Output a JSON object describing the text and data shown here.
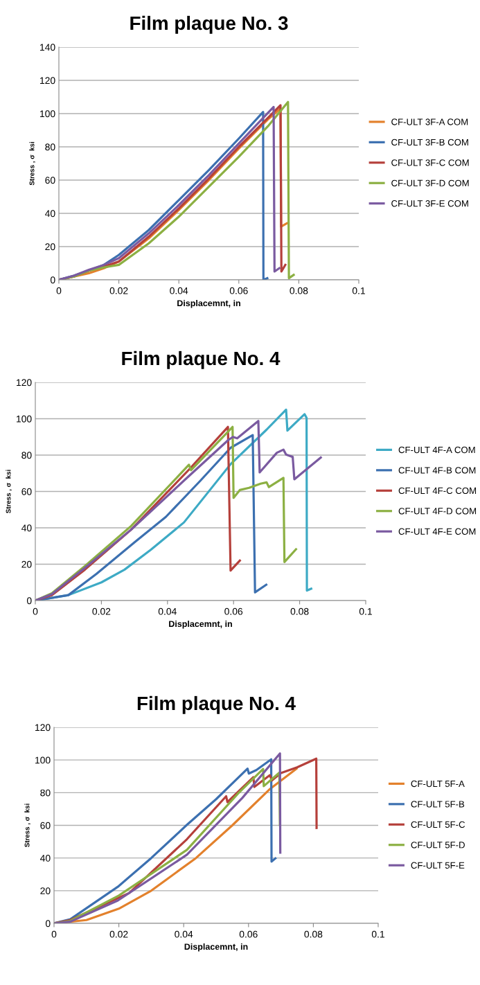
{
  "chart_data": [
    {
      "type": "line",
      "title": "Film plaque No. 3",
      "xlabel": "Displacemnt, in",
      "ylabel": "Stress , σ  ksi",
      "xlim": [
        0,
        0.1
      ],
      "xticks": [
        0,
        0.02,
        0.04,
        0.06,
        0.08,
        0.1
      ],
      "ylim": [
        0,
        140
      ],
      "yticks": [
        0,
        20,
        40,
        60,
        80,
        100,
        120,
        140
      ],
      "grid": "y",
      "legend": "right",
      "marker": "none",
      "line_style": "solid",
      "series": [
        {
          "name": "CF-ULT 3F-A COM",
          "color": "#e3812c",
          "x": [
            0,
            0.005,
            0.01,
            0.015,
            0.02,
            0.03,
            0.04,
            0.05,
            0.06,
            0.07,
            0.0739,
            0.0741,
            0.076
          ],
          "values": [
            0,
            2,
            4,
            7,
            11,
            25,
            42,
            60,
            79,
            97,
            103,
            32,
            34
          ]
        },
        {
          "name": "CF-ULT 3F-B COM",
          "color": "#3c70b0",
          "x": [
            0,
            0.005,
            0.01,
            0.015,
            0.02,
            0.03,
            0.04,
            0.05,
            0.06,
            0.0681,
            0.0682,
            0.0695
          ],
          "values": [
            0,
            2.5,
            5.5,
            9,
            15,
            30,
            48,
            66,
            85,
            101,
            0,
            1
          ]
        },
        {
          "name": "CF-ULT 3F-C COM",
          "color": "#b5403b",
          "x": [
            0,
            0.005,
            0.01,
            0.015,
            0.02,
            0.03,
            0.04,
            0.05,
            0.06,
            0.07,
            0.0739,
            0.0742,
            0.0755
          ],
          "values": [
            0,
            2,
            5.5,
            8,
            11,
            26,
            43,
            61,
            80,
            98,
            105,
            5,
            9
          ]
        },
        {
          "name": "CF-ULT 3F-D COM",
          "color": "#8cb043",
          "x": [
            0,
            0.005,
            0.01,
            0.015,
            0.02,
            0.03,
            0.04,
            0.05,
            0.06,
            0.07,
            0.0764,
            0.0767,
            0.0783
          ],
          "values": [
            0,
            2,
            5.5,
            7.5,
            9,
            22,
            38,
            56,
            74,
            93,
            107,
            1,
            3
          ]
        },
        {
          "name": "CF-ULT 3F-E COM",
          "color": "#7a5aa0",
          "x": [
            0,
            0.005,
            0.01,
            0.015,
            0.02,
            0.03,
            0.04,
            0.05,
            0.06,
            0.0716,
            0.0719,
            0.0735
          ],
          "values": [
            0,
            2.5,
            6,
            9,
            13,
            28,
            45,
            63,
            82,
            104,
            5,
            7
          ]
        }
      ]
    },
    {
      "type": "line",
      "title": "Film plaque No. 4",
      "xlabel": "Displacemnt, in",
      "ylabel": "Stress , σ  ksi",
      "xlim": [
        0,
        0.1
      ],
      "xticks": [
        0,
        0.02,
        0.04,
        0.06,
        0.08,
        0.1
      ],
      "ylim": [
        0,
        120
      ],
      "yticks": [
        0,
        20,
        40,
        60,
        80,
        100,
        120
      ],
      "grid": "y",
      "legend": "right",
      "marker": "none",
      "line_style": "solid",
      "series": [
        {
          "name": "CF-ULT 4F-A COM",
          "color": "#3daac5",
          "x": [
            0,
            0.01,
            0.02,
            0.027,
            0.035,
            0.045,
            0.0591,
            0.07,
            0.0759,
            0.0763,
            0.0815,
            0.0821,
            0.0822,
            0.0835
          ],
          "values": [
            0,
            3,
            10,
            17,
            28,
            43,
            75,
            94,
            105,
            93.5,
            102.5,
            100.5,
            5.5,
            6.5
          ]
        },
        {
          "name": "CF-ULT 4F-B COM",
          "color": "#3c70b0",
          "x": [
            0,
            0.01,
            0.0185,
            0.03,
            0.0395,
            0.05,
            0.0591,
            0.0658,
            0.0665,
            0.0699
          ],
          "values": [
            0,
            3,
            14.7,
            32,
            46,
            66,
            84,
            91,
            4.5,
            8.7
          ]
        },
        {
          "name": "CF-ULT 4F-C COM",
          "color": "#b5403b",
          "x": [
            0,
            0.005,
            0.015,
            0.029,
            0.0465,
            0.0583,
            0.0591,
            0.0619
          ],
          "values": [
            0,
            3,
            17,
            39,
            72,
            95.5,
            16.5,
            22
          ]
        },
        {
          "name": "CF-ULT 4F-D COM",
          "color": "#8cb043",
          "x": [
            0,
            0.005,
            0.015,
            0.029,
            0.0465,
            0.0471,
            0.0597,
            0.06,
            0.0619,
            0.0647,
            0.0682,
            0.07,
            0.0707,
            0.0751,
            0.0754,
            0.0789
          ],
          "values": [
            0,
            4,
            19,
            41,
            74.7,
            71.7,
            95.5,
            56.5,
            60.8,
            62,
            64.3,
            65,
            62.4,
            67.5,
            21.2,
            28.2
          ]
        },
        {
          "name": "CF-ULT 4F-E COM",
          "color": "#7a5aa0",
          "x": [
            0,
            0.005,
            0.015,
            0.029,
            0.045,
            0.0584,
            0.0598,
            0.0611,
            0.0675,
            0.0679,
            0.0731,
            0.0751,
            0.0759,
            0.0779,
            0.0784,
            0.0864
          ],
          "values": [
            0,
            3.5,
            18,
            39,
            66,
            88.3,
            90,
            89.2,
            98.8,
            70.5,
            81.3,
            83,
            80.3,
            79,
            66.7,
            78.7
          ]
        }
      ]
    },
    {
      "type": "line",
      "title": "Film plaque No. 4",
      "xlabel": "Displacemnt, in",
      "ylabel": "Stress , σ  ksi",
      "xlim": [
        0,
        0.1
      ],
      "xticks": [
        0,
        0.02,
        0.04,
        0.06,
        0.08,
        0.1
      ],
      "ylim": [
        0,
        120
      ],
      "yticks": [
        0,
        20,
        40,
        60,
        80,
        100,
        120
      ],
      "grid": "y",
      "legend": "right",
      "marker": "none",
      "line_style": "solid",
      "series": [
        {
          "name": "CF-ULT 5F-A",
          "color": "#e3812c",
          "x": [
            0,
            0.01,
            0.02,
            0.03,
            0.0438,
            0.055,
            0.0667,
            0.0748
          ],
          "values": [
            0,
            2,
            9,
            20,
            40,
            60,
            82.4,
            94.7
          ]
        },
        {
          "name": "CF-ULT 5F-B",
          "color": "#3c70b0",
          "x": [
            0,
            0.005,
            0.0197,
            0.03,
            0.041,
            0.05,
            0.0597,
            0.0601,
            0.0624,
            0.067,
            0.0671,
            0.0683
          ],
          "values": [
            0,
            2.5,
            22.4,
            40,
            60.3,
            76,
            94.7,
            91.7,
            93.8,
            100.4,
            37.8,
            39.8
          ]
        },
        {
          "name": "CF-ULT 5F-C",
          "color": "#b5403b",
          "x": [
            0,
            0.005,
            0.0232,
            0.041,
            0.0531,
            0.0535,
            0.0615,
            0.0618,
            0.0666,
            0.0672,
            0.07,
            0.075,
            0.0809,
            0.081
          ],
          "values": [
            0,
            2,
            18.6,
            51.5,
            77.8,
            74.2,
            89.5,
            83.5,
            90.7,
            87.5,
            92,
            95.5,
            100.8,
            58.4
          ]
        },
        {
          "name": "CF-ULT 5F-D",
          "color": "#8cb043",
          "x": [
            0,
            0.005,
            0.02,
            0.041,
            0.0567,
            0.0645,
            0.0647,
            0.0695,
            0.0697
          ],
          "values": [
            0,
            1.5,
            17,
            45,
            79.3,
            94.5,
            84,
            92.2,
            60.3
          ]
        },
        {
          "name": "CF-ULT 5F-E",
          "color": "#7a5aa0",
          "x": [
            0,
            0.005,
            0.0197,
            0.041,
            0.0581,
            0.0697,
            0.0698
          ],
          "values": [
            0,
            1,
            14,
            42,
            76.8,
            104,
            43.3
          ]
        }
      ]
    }
  ]
}
